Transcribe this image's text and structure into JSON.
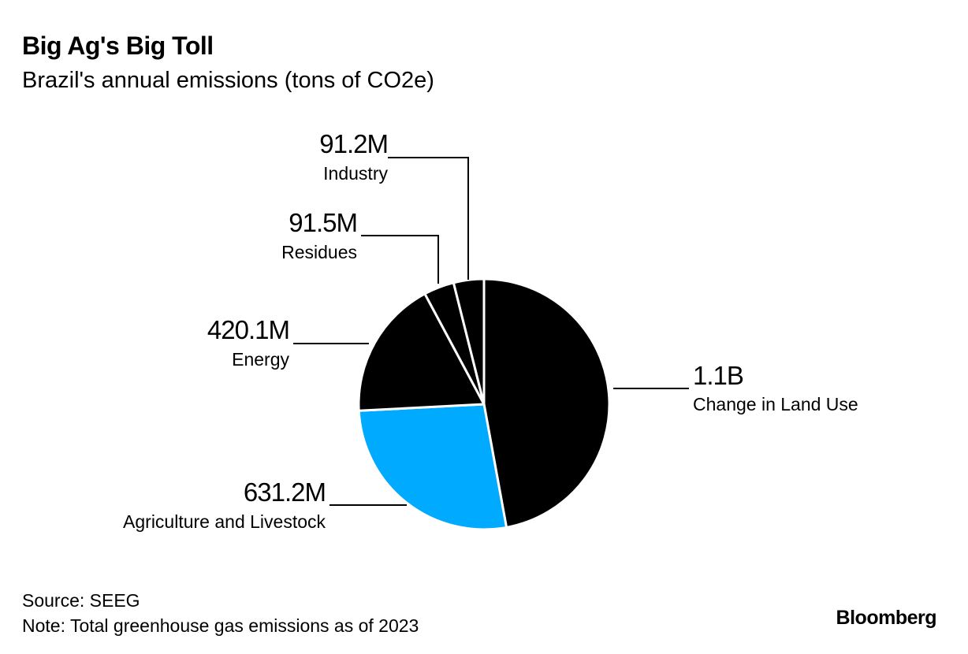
{
  "header": {
    "title": "Big Ag's Big Toll",
    "subtitle": "Brazil's annual emissions (tons of CO2e)"
  },
  "chart_data": {
    "type": "pie",
    "title": "Big Ag's Big Toll",
    "subtitle": "Brazil's annual emissions (tons of CO2e)",
    "slices": [
      {
        "name": "Change in Land Use",
        "value_label": "1.1B",
        "value": 1100.0,
        "color": "#000000"
      },
      {
        "name": "Agriculture and Livestock",
        "value_label": "631.2M",
        "value": 631.2,
        "color": "#00aaff"
      },
      {
        "name": "Energy",
        "value_label": "420.1M",
        "value": 420.1,
        "color": "#000000"
      },
      {
        "name": "Residues",
        "value_label": "91.5M",
        "value": 91.5,
        "color": "#000000"
      },
      {
        "name": "Industry",
        "value_label": "91.2M",
        "value": 91.2,
        "color": "#000000"
      }
    ],
    "units": "tons of CO2e (millions)"
  },
  "footer": {
    "source": "Source: SEEG",
    "note": "Note: Total greenhouse gas emissions as of 2023",
    "brand": "Bloomberg"
  }
}
